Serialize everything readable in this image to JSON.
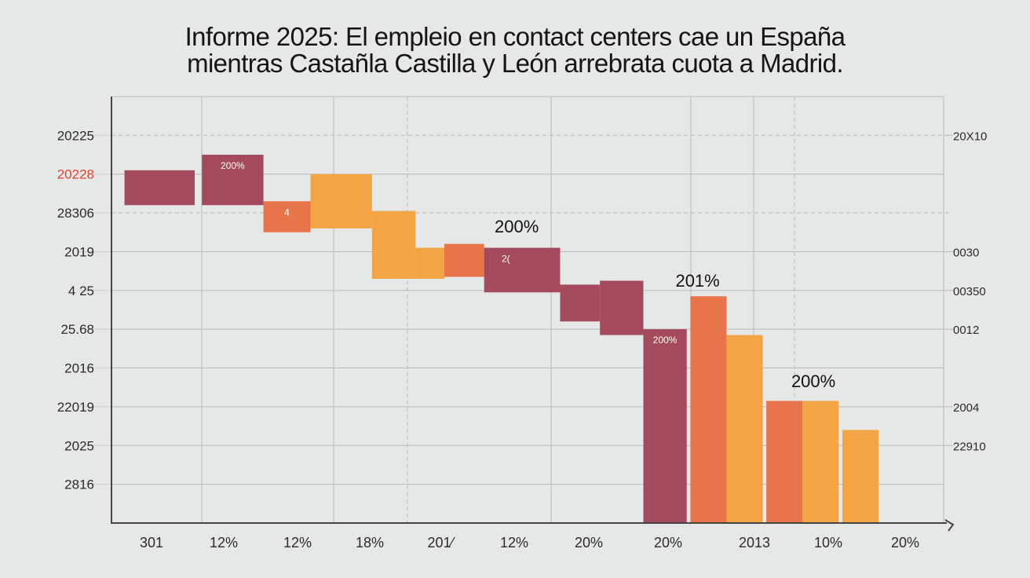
{
  "chart_data": {
    "type": "bar",
    "title": "Informe 2025: El empleio en contact centers cae un España mientras Castañla Castilla y León arrebrata cuota a Madrid.",
    "title_lines": [
      "Informe 2025: El empleio en contact centers cae un España",
      "mientras Castañla Castilla y León arrebrata cuota a Madrid."
    ],
    "xlabel": "",
    "ylabel": "",
    "grid": true,
    "legend": "none",
    "y_ticks_left": [
      {
        "label": "20225",
        "highlight": false
      },
      {
        "label": "20228",
        "highlight": true
      },
      {
        "label": "28306",
        "highlight": false
      },
      {
        "label": "2019",
        "highlight": false
      },
      {
        "label": "4 25",
        "highlight": false
      },
      {
        "label": "25.68",
        "highlight": false
      },
      {
        "label": "2016",
        "highlight": false
      },
      {
        "label": "22019",
        "highlight": false
      },
      {
        "label": "2025",
        "highlight": false
      },
      {
        "label": "2816",
        "highlight": false
      }
    ],
    "y_ticks_right": [
      {
        "label": "20X10",
        "level": 10
      },
      {
        "label": "0030",
        "level": 7
      },
      {
        "label": "00350",
        "level": 6
      },
      {
        "label": "0012",
        "level": 5
      },
      {
        "label": "2004",
        "level": 3
      },
      {
        "label": "22910",
        "level": 2
      }
    ],
    "x_tick_labels": [
      "301",
      "12%",
      "12%",
      "18%",
      "201⁄",
      "12%",
      "20%",
      "20%",
      "2013",
      "10%",
      "20%"
    ],
    "ylim": [
      0,
      11
    ],
    "colors": {
      "series_a": "#a44a5c",
      "series_b": "#e8744a",
      "series_c": "#f3a545",
      "highlight_tick": "#e0442f",
      "axis": "#444444",
      "grid": "#b8babe"
    },
    "series": [
      {
        "name": "A",
        "color_key": "series_a"
      },
      {
        "name": "B",
        "color_key": "series_b"
      },
      {
        "name": "C",
        "color_key": "series_c"
      }
    ],
    "bars": [
      {
        "series": "A",
        "x0": 0.18,
        "x1": 1.15,
        "top": 9.1,
        "bottom": 8.2
      },
      {
        "series": "A",
        "x0": 1.25,
        "x1": 2.1,
        "top": 9.5,
        "bottom": 8.2,
        "label": "200%"
      },
      {
        "series": "B",
        "x0": 2.1,
        "x1": 2.75,
        "top": 8.3,
        "bottom": 7.5,
        "label": "4"
      },
      {
        "series": "C",
        "x0": 2.75,
        "x1": 3.6,
        "top": 9.0,
        "bottom": 7.6
      },
      {
        "series": "C",
        "x0": 3.6,
        "x1": 4.2,
        "top": 8.05,
        "bottom": 6.3
      },
      {
        "series": "C",
        "x0": 4.2,
        "x1": 4.6,
        "top": 7.1,
        "bottom": 6.3
      },
      {
        "series": "B",
        "x0": 4.6,
        "x1": 5.15,
        "top": 7.2,
        "bottom": 6.35
      },
      {
        "series": "A",
        "x0": 5.15,
        "x1": 5.75,
        "top": 7.1,
        "bottom": 5.95,
        "label": "2("
      },
      {
        "series": "A",
        "x0": 5.75,
        "x1": 6.2,
        "top": 7.1,
        "bottom": 5.95
      },
      {
        "series": "A",
        "x0": 6.2,
        "x1": 6.75,
        "top": 6.15,
        "bottom": 5.2
      },
      {
        "series": "A",
        "x0": 6.75,
        "x1": 7.35,
        "top": 6.25,
        "bottom": 4.85
      },
      {
        "series": "A",
        "x0": 7.35,
        "x1": 7.95,
        "top": 5.0,
        "bottom": 0,
        "label": "200%"
      },
      {
        "series": "B",
        "x0": 8.0,
        "x1": 8.5,
        "top": 5.85,
        "bottom": 0
      },
      {
        "series": "C",
        "x0": 8.5,
        "x1": 9.0,
        "top": 4.85,
        "bottom": 0
      },
      {
        "series": "B",
        "x0": 9.05,
        "x1": 9.55,
        "top": 3.15,
        "bottom": 0
      },
      {
        "series": "C",
        "x0": 9.55,
        "x1": 10.05,
        "top": 3.15,
        "bottom": 0
      },
      {
        "series": "C",
        "x0": 10.1,
        "x1": 10.6,
        "top": 2.4,
        "bottom": 0
      }
    ],
    "annotations": [
      {
        "text": "200%",
        "x": 5.6,
        "y": 7.5
      },
      {
        "text": "201%",
        "x": 8.1,
        "y": 6.1
      },
      {
        "text": "200%",
        "x": 9.7,
        "y": 3.5
      }
    ],
    "xlim": [
      0,
      11.5
    ]
  }
}
